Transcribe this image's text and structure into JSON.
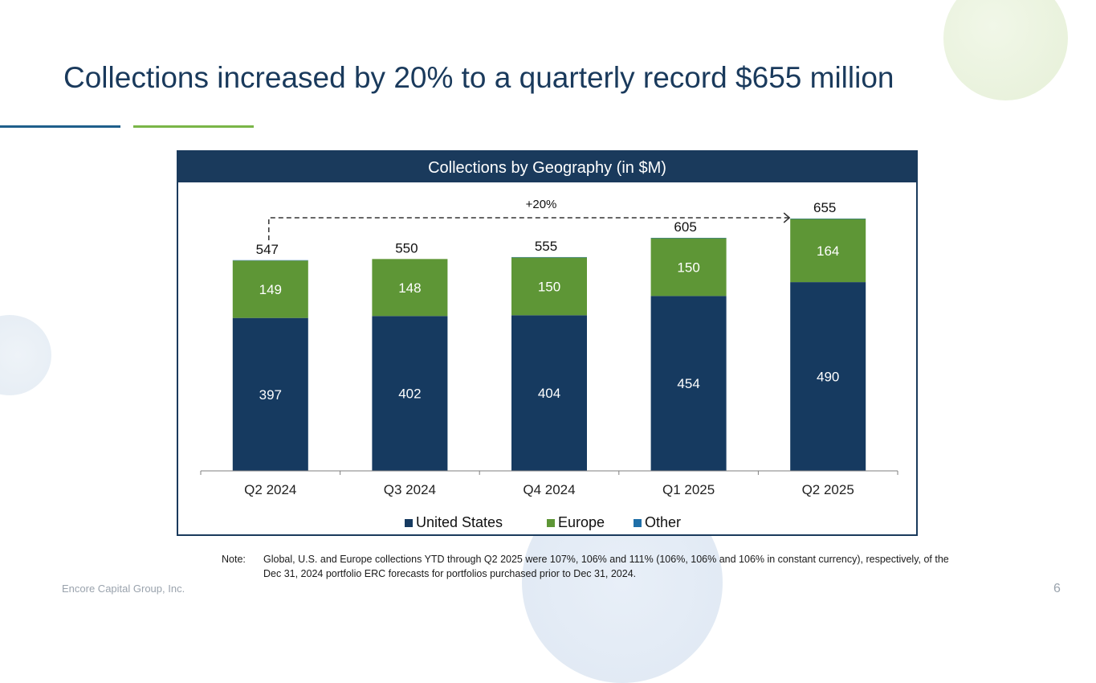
{
  "slide": {
    "title": "Collections increased by 20% to a quarterly record $655 million",
    "footer_company": "Encore Capital Group, Inc.",
    "page_number": "6",
    "note_label": "Note:",
    "note_text": "Global, U.S. and Europe collections YTD through Q2 2025 were 107%, 106% and 111% (106%, 106% and 106% in constant currency), respectively, of the Dec 31, 2024 portfolio ERC forecasts for portfolios purchased prior to Dec 31, 2024."
  },
  "colors": {
    "navy": "#1a3a5c",
    "accent_blue": "#1f5f8b",
    "accent_green": "#7ab648"
  },
  "chart_data": {
    "type": "bar",
    "stacked": true,
    "title": "Collections by Geography (in $M)",
    "categories": [
      "Q2 2024",
      "Q3 2024",
      "Q4 2024",
      "Q1 2025",
      "Q2 2025"
    ],
    "series": [
      {
        "name": "United States",
        "color": "#163a60",
        "values": [
          397,
          402,
          404,
          454,
          490
        ]
      },
      {
        "name": "Europe",
        "color": "#5e9636",
        "values": [
          149,
          148,
          150,
          150,
          164
        ]
      },
      {
        "name": "Other",
        "color": "#1f6fa8",
        "values": [
          1,
          0,
          1,
          1,
          1
        ]
      }
    ],
    "totals": [
      "547",
      "550",
      "555",
      "605",
      "655"
    ],
    "ylim": [
      0,
      700
    ],
    "legend_position": "bottom",
    "annotation": {
      "text": "+20%",
      "from": "Q2 2024",
      "to": "Q2 2025"
    }
  }
}
